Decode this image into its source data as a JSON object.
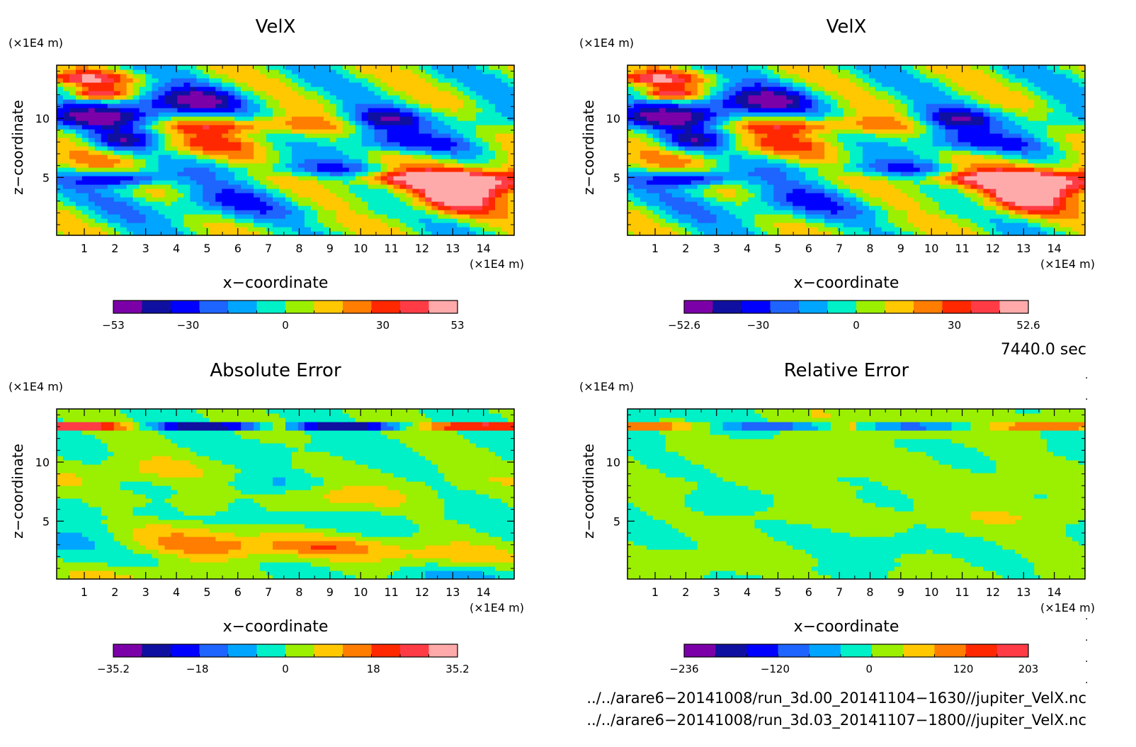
{
  "chart_data": [
    {
      "type": "heatmap",
      "title": "VelX",
      "xlabel": "x−coordinate",
      "ylabel": "z−coordinate",
      "x_unit": "(×1E4 m)",
      "z_unit": "(×1E4 m)",
      "xlim": [
        0.1,
        15
      ],
      "zlim": [
        0.1,
        14.5
      ],
      "x_ticks": [
        1,
        2,
        3,
        4,
        5,
        6,
        7,
        8,
        9,
        10,
        11,
        12,
        13,
        14
      ],
      "z_ticks": [
        5,
        10
      ],
      "colorbar": {
        "levels": 12,
        "tick_labels": [
          {
            "label": "−53",
            "value": -53
          },
          {
            "label": "−30",
            "value": -30
          },
          {
            "label": "0",
            "value": 0
          },
          {
            "label": "30",
            "value": 30
          },
          {
            "label": "53",
            "value": 53
          }
        ]
      }
    },
    {
      "type": "heatmap",
      "title": "VelX",
      "xlabel": "x−coordinate",
      "ylabel": "z−coordinate",
      "x_unit": "(×1E4 m)",
      "z_unit": "(×1E4 m)",
      "xlim": [
        0.1,
        15
      ],
      "zlim": [
        0.1,
        14.5
      ],
      "x_ticks": [
        1,
        2,
        3,
        4,
        5,
        6,
        7,
        8,
        9,
        10,
        11,
        12,
        13,
        14
      ],
      "z_ticks": [
        5,
        10
      ],
      "colorbar": {
        "levels": 12,
        "tick_labels": [
          {
            "label": "−52.6",
            "value": -52.6
          },
          {
            "label": "−30",
            "value": -30
          },
          {
            "label": "0",
            "value": 0
          },
          {
            "label": "30",
            "value": 30
          },
          {
            "label": "52.6",
            "value": 52.6
          }
        ]
      }
    },
    {
      "type": "heatmap",
      "title": "Absolute Error",
      "xlabel": "x−coordinate",
      "ylabel": "z−coordinate",
      "x_unit": "(×1E4 m)",
      "z_unit": "(×1E4 m)",
      "xlim": [
        0.1,
        15
      ],
      "zlim": [
        0.1,
        14.5
      ],
      "x_ticks": [
        1,
        2,
        3,
        4,
        5,
        6,
        7,
        8,
        9,
        10,
        11,
        12,
        13,
        14
      ],
      "z_ticks": [
        5,
        10
      ],
      "colorbar": {
        "levels": 12,
        "tick_labels": [
          {
            "label": "−35.2",
            "value": -35.2
          },
          {
            "label": "−18",
            "value": -18
          },
          {
            "label": "0",
            "value": 0
          },
          {
            "label": "18",
            "value": 18
          },
          {
            "label": "35.2",
            "value": 35.2
          }
        ]
      }
    },
    {
      "type": "heatmap",
      "title": "Relative Error",
      "xlabel": "x−coordinate",
      "ylabel": "z−coordinate",
      "x_unit": "(×1E4 m)",
      "z_unit": "(×1E4 m)",
      "xlim": [
        0.1,
        15
      ],
      "zlim": [
        0.1,
        14.5
      ],
      "x_ticks": [
        1,
        2,
        3,
        4,
        5,
        6,
        7,
        8,
        9,
        10,
        11,
        12,
        13,
        14
      ],
      "z_ticks": [
        5,
        10
      ],
      "colorbar": {
        "levels": 11,
        "tick_labels": [
          {
            "label": "−236",
            "value": -236
          },
          {
            "label": "−120",
            "value": -120
          },
          {
            "label": "0",
            "value": 0
          },
          {
            "label": "120",
            "value": 120
          },
          {
            "label": "203",
            "value": 203
          }
        ]
      }
    }
  ],
  "annotations": {
    "time": "7440.0 sec",
    "file1": "../../arare6−20141008/run_3d.00_20141104−1630//jupiter_VelX.nc",
    "file2": "../../arare6−20141008/run_3d.03_20141107−1800//jupiter_VelX.nc"
  },
  "palette": [
    "#7b00a8",
    "#1010a0",
    "#0000ff",
    "#1e64ff",
    "#00a5ff",
    "#00f0c8",
    "#9bef00",
    "#ffc800",
    "#ff7d00",
    "#ff2800",
    "#ff3c46",
    "#ffaaaa"
  ]
}
